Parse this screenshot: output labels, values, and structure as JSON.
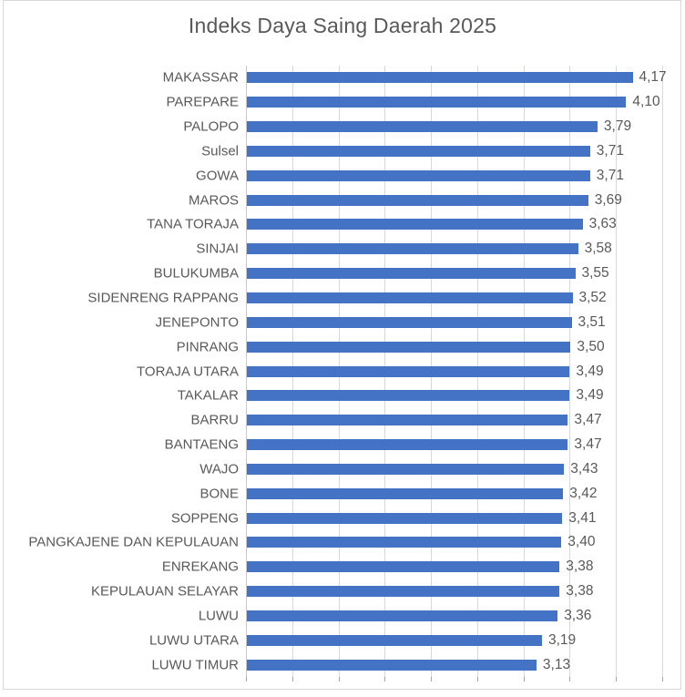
{
  "title": "Indeks Daya Saing Daerah 2025",
  "colors": {
    "bar": "#4472C4",
    "gridline": "#D9D9D9",
    "axis": "#C9C9C9",
    "tick": "#A6A6A6",
    "text": "#595959",
    "frame": "#D9D9D9"
  },
  "chart_data": {
    "type": "bar",
    "orientation": "horizontal",
    "title": "Indeks Daya Saing Daerah 2025",
    "categories": [
      "MAKASSAR",
      "PAREPARE",
      "PALOPO",
      "Sulsel",
      "GOWA",
      "MAROS",
      "TANA TORAJA",
      "SINJAI",
      "BULUKUMBA",
      "SIDENRENG RAPPANG",
      "JENEPONTO",
      "PINRANG",
      "TORAJA UTARA",
      "TAKALAR",
      "BARRU",
      "BANTAENG",
      "WAJO",
      "BONE",
      "SOPPENG",
      "PANGKAJENE DAN KEPULAUAN",
      "ENREKANG",
      "KEPULAUAN SELAYAR",
      "LUWU",
      "LUWU UTARA",
      "LUWU TIMUR"
    ],
    "values": [
      4.17,
      4.1,
      3.79,
      3.71,
      3.71,
      3.69,
      3.63,
      3.58,
      3.55,
      3.52,
      3.51,
      3.5,
      3.49,
      3.49,
      3.47,
      3.47,
      3.43,
      3.42,
      3.41,
      3.4,
      3.38,
      3.38,
      3.36,
      3.19,
      3.13
    ],
    "value_labels": [
      "4,17",
      "4,10",
      "3,79",
      "3,71",
      "3,71",
      "3,69",
      "3,63",
      "3,58",
      "3,55",
      "3,52",
      "3,51",
      "3,50",
      "3,49",
      "3,49",
      "3,47",
      "3,47",
      "3,43",
      "3,42",
      "3,41",
      "3,40",
      "3,38",
      "3,38",
      "3,36",
      "3,19",
      "3,13"
    ],
    "xlabel": "",
    "ylabel": "",
    "xlim": [
      0,
      4.5
    ],
    "grid_step": 0.5,
    "grid": true,
    "legend": false,
    "data_labels": true
  }
}
